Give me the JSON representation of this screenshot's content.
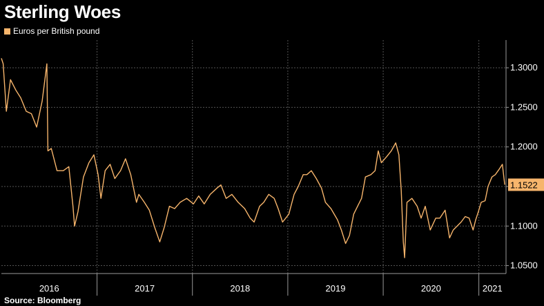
{
  "title": "Sterling Woes",
  "legend_label": "Euros per British pound",
  "source": "Source: Bloomberg",
  "colors": {
    "series": "#F7B56C",
    "grid": "#555555",
    "axis": "#9a9a9a",
    "background": "#000000"
  },
  "chart_data": {
    "type": "line",
    "series": [
      {
        "name": "Euros per British pound",
        "x": [
          "2016-01-01",
          "2016-01-08",
          "2016-01-20",
          "2016-02-05",
          "2016-02-25",
          "2016-03-15",
          "2016-04-05",
          "2016-04-25",
          "2016-05-15",
          "2016-06-05",
          "2016-06-23",
          "2016-06-27",
          "2016-07-10",
          "2016-08-01",
          "2016-08-25",
          "2016-09-15",
          "2016-10-01",
          "2016-10-07",
          "2016-10-20",
          "2016-11-10",
          "2016-12-01",
          "2016-12-20",
          "2017-01-05",
          "2017-01-16",
          "2017-02-01",
          "2017-02-20",
          "2017-03-10",
          "2017-04-01",
          "2017-04-20",
          "2017-05-10",
          "2017-06-01",
          "2017-06-10",
          "2017-07-01",
          "2017-07-20",
          "2017-08-10",
          "2017-08-29",
          "2017-09-15",
          "2017-10-05",
          "2017-10-25",
          "2017-11-15",
          "2017-12-10",
          "2018-01-05",
          "2018-01-25",
          "2018-02-15",
          "2018-03-10",
          "2018-04-05",
          "2018-04-20",
          "2018-05-10",
          "2018-06-01",
          "2018-06-25",
          "2018-07-20",
          "2018-08-10",
          "2018-08-25",
          "2018-09-15",
          "2018-10-01",
          "2018-10-20",
          "2018-11-10",
          "2018-11-25",
          "2018-12-12",
          "2019-01-05",
          "2019-01-25",
          "2019-02-10",
          "2019-03-01",
          "2019-03-15",
          "2019-04-01",
          "2019-04-20",
          "2019-05-10",
          "2019-05-25",
          "2019-06-15",
          "2019-07-10",
          "2019-07-25",
          "2019-08-10",
          "2019-08-25",
          "2019-09-10",
          "2019-09-25",
          "2019-10-10",
          "2019-10-25",
          "2019-11-15",
          "2019-12-01",
          "2019-12-13",
          "2019-12-25",
          "2020-01-15",
          "2020-02-01",
          "2020-02-18",
          "2020-03-01",
          "2020-03-10",
          "2020-03-18",
          "2020-03-23",
          "2020-04-01",
          "2020-04-20",
          "2020-05-10",
          "2020-05-25",
          "2020-06-10",
          "2020-06-29",
          "2020-07-20",
          "2020-08-05",
          "2020-08-25",
          "2020-09-11",
          "2020-09-25",
          "2020-10-10",
          "2020-10-25",
          "2020-11-10",
          "2020-11-25",
          "2020-12-10",
          "2020-12-20",
          "2020-12-30",
          "2021-01-10",
          "2021-01-25",
          "2021-02-05",
          "2021-02-20",
          "2021-03-05",
          "2021-03-20",
          "2021-04-01",
          "2021-04-10"
        ],
        "values": [
          1.312,
          1.305,
          1.245,
          1.285,
          1.272,
          1.262,
          1.245,
          1.242,
          1.225,
          1.258,
          1.305,
          1.195,
          1.198,
          1.17,
          1.17,
          1.175,
          1.125,
          1.1,
          1.118,
          1.162,
          1.18,
          1.19,
          1.165,
          1.135,
          1.17,
          1.178,
          1.16,
          1.17,
          1.185,
          1.165,
          1.13,
          1.14,
          1.13,
          1.12,
          1.098,
          1.08,
          1.098,
          1.125,
          1.122,
          1.13,
          1.135,
          1.128,
          1.138,
          1.128,
          1.14,
          1.148,
          1.152,
          1.135,
          1.14,
          1.13,
          1.122,
          1.11,
          1.105,
          1.125,
          1.13,
          1.14,
          1.135,
          1.122,
          1.105,
          1.115,
          1.14,
          1.15,
          1.165,
          1.165,
          1.17,
          1.16,
          1.148,
          1.13,
          1.122,
          1.108,
          1.095,
          1.078,
          1.088,
          1.115,
          1.125,
          1.135,
          1.162,
          1.165,
          1.17,
          1.195,
          1.18,
          1.188,
          1.195,
          1.205,
          1.19,
          1.145,
          1.08,
          1.06,
          1.13,
          1.135,
          1.125,
          1.11,
          1.125,
          1.095,
          1.11,
          1.11,
          1.12,
          1.085,
          1.095,
          1.1,
          1.105,
          1.112,
          1.11,
          1.095,
          1.108,
          1.118,
          1.13,
          1.132,
          1.15,
          1.162,
          1.165,
          1.172,
          1.178,
          1.1522
        ]
      }
    ],
    "ylim": [
      1.04,
      1.335
    ],
    "y_ticks": [
      1.05,
      1.1,
      1.15,
      1.2,
      1.25,
      1.3
    ],
    "y_tick_labels": [
      "1.0500",
      "1.1000",
      "1.1500",
      "1.2000",
      "1.2500",
      "1.3000"
    ],
    "x_range": [
      "2016-01-01",
      "2021-04-15"
    ],
    "year_labels": [
      "2016",
      "2017",
      "2018",
      "2019",
      "2020",
      "2021"
    ],
    "last_value_label": "1.1522",
    "grid": true,
    "legend_position": "top-left",
    "y_axis_position": "right"
  }
}
